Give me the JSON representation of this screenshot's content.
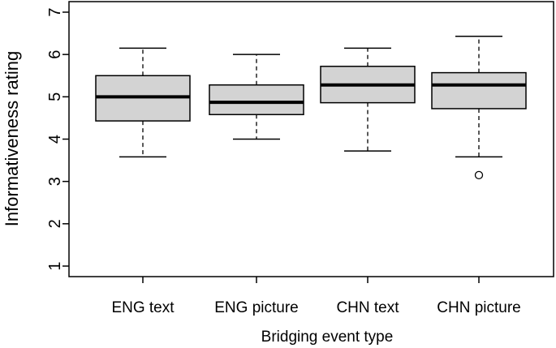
{
  "chart_data": {
    "type": "boxplot",
    "title": "",
    "xlabel": "Bridging event type",
    "ylabel": "Informativeness rating",
    "ylim": [
      0.8,
      7.2
    ],
    "yticks": [
      1,
      2,
      3,
      4,
      5,
      6,
      7
    ],
    "ytick_labels": [
      "1",
      "2",
      "3",
      "4",
      "5",
      "6",
      "7"
    ],
    "grid": false,
    "categories": [
      "ENG text",
      "ENG picture",
      "CHN text",
      "CHN picture"
    ],
    "boxes": [
      {
        "label": "ENG text",
        "whisker_low": 3.58,
        "q1": 4.43,
        "median": 5.0,
        "q3": 5.5,
        "whisker_high": 6.15,
        "outliers": []
      },
      {
        "label": "ENG picture",
        "whisker_low": 4.0,
        "q1": 4.58,
        "median": 4.87,
        "q3": 5.28,
        "whisker_high": 6.0,
        "outliers": []
      },
      {
        "label": "CHN text",
        "whisker_low": 3.72,
        "q1": 4.86,
        "median": 5.28,
        "q3": 5.72,
        "whisker_high": 6.15,
        "outliers": []
      },
      {
        "label": "CHN picture",
        "whisker_low": 3.58,
        "q1": 4.72,
        "median": 5.28,
        "q3": 5.57,
        "whisker_high": 6.43,
        "outliers": [
          3.15
        ]
      }
    ],
    "colors": {
      "box_fill": "#d3d3d3",
      "stroke": "#000000",
      "median": "#000000"
    }
  }
}
